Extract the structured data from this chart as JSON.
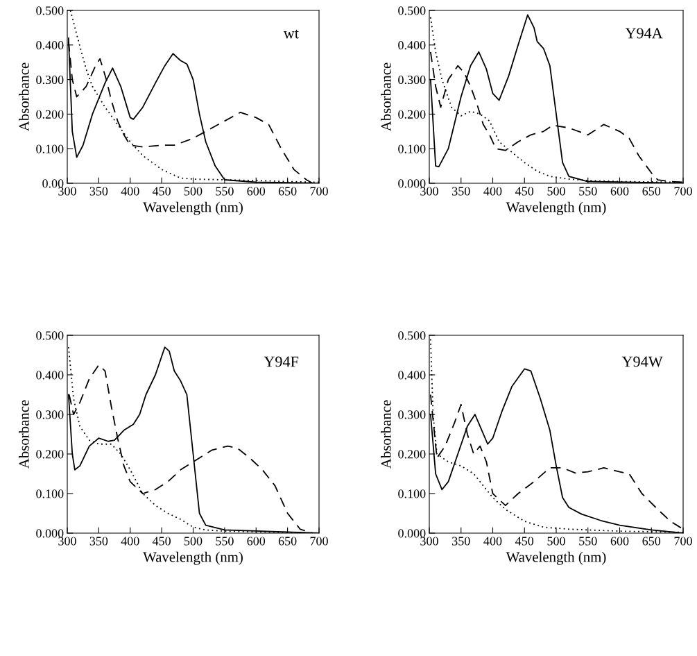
{
  "chart_data": [
    {
      "type": "line",
      "title": "wt",
      "xlabel": "Wavelength (nm)",
      "ylabel": "Absorbance",
      "xlim": [
        300,
        700
      ],
      "ylim": [
        0,
        0.5
      ],
      "xticks": [
        300,
        350,
        400,
        450,
        500,
        550,
        600,
        650,
        700
      ],
      "yticks": [
        {
          "value": 0,
          "label": "0.00"
        },
        {
          "value": 0.1,
          "label": "0.100"
        },
        {
          "value": 0.2,
          "label": "0.200"
        },
        {
          "value": 0.3,
          "label": "0.300"
        },
        {
          "value": 0.4,
          "label": "0.400"
        },
        {
          "value": 0.5,
          "label": "0.500"
        }
      ],
      "series": [
        {
          "color": "#000000",
          "line_style": "solid",
          "x": [
            302,
            308,
            315,
            325,
            340,
            360,
            372,
            385,
            400,
            405,
            420,
            440,
            455,
            468,
            480,
            490,
            500,
            510,
            520,
            535,
            550,
            600,
            700
          ],
          "values": [
            0.42,
            0.15,
            0.075,
            0.11,
            0.2,
            0.29,
            0.333,
            0.28,
            0.19,
            0.185,
            0.22,
            0.29,
            0.34,
            0.375,
            0.355,
            0.345,
            0.3,
            0.2,
            0.12,
            0.05,
            0.01,
            0.003,
            0
          ]
        },
        {
          "color": "#000000",
          "line_style": "dashed",
          "x": [
            302,
            308,
            315,
            330,
            345,
            352,
            362,
            370,
            380,
            390,
            400,
            420,
            450,
            470,
            500,
            530,
            550,
            575,
            600,
            620,
            640,
            660,
            680,
            690
          ],
          "values": [
            0.41,
            0.3,
            0.25,
            0.28,
            0.34,
            0.36,
            0.3,
            0.24,
            0.18,
            0.14,
            0.11,
            0.105,
            0.11,
            0.11,
            0.13,
            0.16,
            0.18,
            0.205,
            0.19,
            0.17,
            0.1,
            0.04,
            0.01,
            0
          ]
        },
        {
          "color": "#000000",
          "line_style": "dotted",
          "x": [
            305,
            315,
            330,
            340,
            360,
            380,
            400,
            420,
            450,
            480,
            500,
            550,
            600,
            650,
            700
          ],
          "values": [
            0.5,
            0.43,
            0.33,
            0.28,
            0.22,
            0.17,
            0.12,
            0.08,
            0.04,
            0.015,
            0.012,
            0.01,
            0.008,
            0.005,
            0.003
          ]
        }
      ]
    },
    {
      "type": "line",
      "title": "Y94A",
      "xlabel": "Wavelength (nm)",
      "ylabel": "Absorbance",
      "xlim": [
        300,
        700
      ],
      "ylim": [
        0,
        0.5
      ],
      "xticks": [
        300,
        350,
        400,
        450,
        500,
        550,
        600,
        650,
        700
      ],
      "yticks": [
        {
          "value": 0,
          "label": "0.000"
        },
        {
          "value": 0.1,
          "label": "0.100"
        },
        {
          "value": 0.2,
          "label": "0.200"
        },
        {
          "value": 0.3,
          "label": "0.300"
        },
        {
          "value": 0.4,
          "label": "0.400"
        },
        {
          "value": 0.5,
          "label": "0.500"
        }
      ],
      "series": [
        {
          "color": "#000000",
          "line_style": "solid",
          "x": [
            302,
            310,
            315,
            330,
            350,
            365,
            378,
            390,
            400,
            410,
            425,
            440,
            455,
            465,
            470,
            480,
            490,
            500,
            510,
            520,
            550,
            700
          ],
          "values": [
            0.3,
            0.05,
            0.048,
            0.1,
            0.25,
            0.34,
            0.38,
            0.33,
            0.26,
            0.24,
            0.31,
            0.4,
            0.487,
            0.45,
            0.41,
            0.39,
            0.34,
            0.2,
            0.06,
            0.02,
            0.005,
            0
          ]
        },
        {
          "color": "#000000",
          "line_style": "dashed",
          "x": [
            302,
            310,
            318,
            330,
            345,
            355,
            365,
            375,
            385,
            395,
            405,
            420,
            440,
            460,
            480,
            495,
            520,
            550,
            575,
            600,
            615,
            630,
            650,
            660,
            680,
            700
          ],
          "values": [
            0.38,
            0.28,
            0.22,
            0.3,
            0.34,
            0.32,
            0.28,
            0.23,
            0.17,
            0.14,
            0.1,
            0.095,
            0.12,
            0.14,
            0.15,
            0.168,
            0.16,
            0.14,
            0.17,
            0.15,
            0.13,
            0.08,
            0.03,
            0.01,
            0.005,
            0.003
          ]
        },
        {
          "color": "#000000",
          "line_style": "dotted",
          "x": [
            302,
            310,
            320,
            335,
            350,
            365,
            380,
            395,
            410,
            430,
            450,
            470,
            490,
            520,
            550,
            600,
            700
          ],
          "values": [
            0.48,
            0.38,
            0.3,
            0.22,
            0.195,
            0.208,
            0.2,
            0.18,
            0.12,
            0.09,
            0.06,
            0.035,
            0.02,
            0.012,
            0.008,
            0.005,
            0.003
          ]
        }
      ]
    },
    {
      "type": "line",
      "title": "Y94F",
      "xlabel": "Wavelength (nm)",
      "ylabel": "Absorbance",
      "xlim": [
        300,
        700
      ],
      "ylim": [
        0,
        0.5
      ],
      "xticks": [
        300,
        350,
        400,
        450,
        500,
        550,
        600,
        650,
        700
      ],
      "yticks": [
        {
          "value": 0,
          "label": "0.000"
        },
        {
          "value": 0.1,
          "label": "0.100"
        },
        {
          "value": 0.2,
          "label": "0.200"
        },
        {
          "value": 0.3,
          "label": "0.300"
        },
        {
          "value": 0.4,
          "label": "0.400"
        },
        {
          "value": 0.5,
          "label": "0.500"
        }
      ],
      "series": [
        {
          "color": "#000000",
          "line_style": "solid",
          "x": [
            302,
            308,
            312,
            320,
            335,
            350,
            365,
            375,
            390,
            405,
            415,
            425,
            440,
            455,
            462,
            470,
            480,
            490,
            500,
            510,
            520,
            550,
            700
          ],
          "values": [
            0.35,
            0.2,
            0.16,
            0.17,
            0.22,
            0.24,
            0.232,
            0.235,
            0.26,
            0.275,
            0.3,
            0.35,
            0.4,
            0.47,
            0.46,
            0.41,
            0.385,
            0.35,
            0.2,
            0.05,
            0.02,
            0.008,
            0
          ]
        },
        {
          "color": "#000000",
          "line_style": "dashed",
          "x": [
            303,
            310,
            320,
            335,
            350,
            360,
            370,
            380,
            390,
            400,
            420,
            440,
            460,
            480,
            500,
            530,
            555,
            570,
            590,
            610,
            630,
            650,
            670,
            690
          ],
          "values": [
            0.35,
            0.3,
            0.33,
            0.39,
            0.425,
            0.41,
            0.32,
            0.24,
            0.17,
            0.13,
            0.1,
            0.11,
            0.13,
            0.16,
            0.18,
            0.21,
            0.22,
            0.215,
            0.19,
            0.16,
            0.12,
            0.05,
            0.01,
            0
          ]
        },
        {
          "color": "#000000",
          "line_style": "dotted",
          "x": [
            302,
            310,
            320,
            335,
            350,
            370,
            385,
            400,
            420,
            440,
            460,
            480,
            500,
            520,
            550,
            700
          ],
          "values": [
            0.47,
            0.34,
            0.27,
            0.235,
            0.225,
            0.225,
            0.2,
            0.16,
            0.1,
            0.07,
            0.05,
            0.035,
            0.015,
            0.008,
            0.005,
            0
          ]
        }
      ]
    },
    {
      "type": "line",
      "title": "Y94W",
      "xlabel": "Wavelength (nm)",
      "ylabel": "Absorbance",
      "xlim": [
        300,
        700
      ],
      "ylim": [
        0,
        0.5
      ],
      "xticks": [
        300,
        350,
        400,
        450,
        500,
        550,
        600,
        650,
        700
      ],
      "yticks": [
        {
          "value": 0,
          "label": "0.000"
        },
        {
          "value": 0.1,
          "label": "0.100"
        },
        {
          "value": 0.2,
          "label": "0.200"
        },
        {
          "value": 0.3,
          "label": "0.300"
        },
        {
          "value": 0.4,
          "label": "0.400"
        },
        {
          "value": 0.5,
          "label": "0.500"
        }
      ],
      "series": [
        {
          "color": "#000000",
          "line_style": "solid",
          "x": [
            302,
            310,
            320,
            330,
            345,
            360,
            372,
            380,
            392,
            400,
            415,
            430,
            450,
            460,
            475,
            490,
            500,
            510,
            520,
            540,
            570,
            600,
            650,
            700
          ],
          "values": [
            0.3,
            0.15,
            0.11,
            0.13,
            0.2,
            0.27,
            0.3,
            0.27,
            0.225,
            0.24,
            0.31,
            0.37,
            0.415,
            0.41,
            0.34,
            0.26,
            0.17,
            0.09,
            0.065,
            0.048,
            0.032,
            0.02,
            0.008,
            0
          ]
        },
        {
          "color": "#000000",
          "line_style": "dashed",
          "x": [
            302,
            312,
            325,
            340,
            350,
            360,
            370,
            380,
            390,
            400,
            420,
            440,
            465,
            490,
            510,
            530,
            550,
            575,
            600,
            615,
            635,
            660,
            680,
            700
          ],
          "values": [
            0.35,
            0.19,
            0.22,
            0.28,
            0.325,
            0.25,
            0.2,
            0.22,
            0.18,
            0.1,
            0.07,
            0.1,
            0.13,
            0.165,
            0.165,
            0.152,
            0.155,
            0.165,
            0.155,
            0.15,
            0.1,
            0.06,
            0.03,
            0.01
          ]
        },
        {
          "color": "#000000",
          "line_style": "dotted",
          "x": [
            302,
            306,
            312,
            330,
            350,
            370,
            385,
            400,
            420,
            450,
            480,
            520,
            600,
            700
          ],
          "values": [
            0.49,
            0.3,
            0.2,
            0.18,
            0.17,
            0.15,
            0.12,
            0.09,
            0.06,
            0.03,
            0.015,
            0.01,
            0.005,
            0.002
          ]
        }
      ]
    }
  ]
}
